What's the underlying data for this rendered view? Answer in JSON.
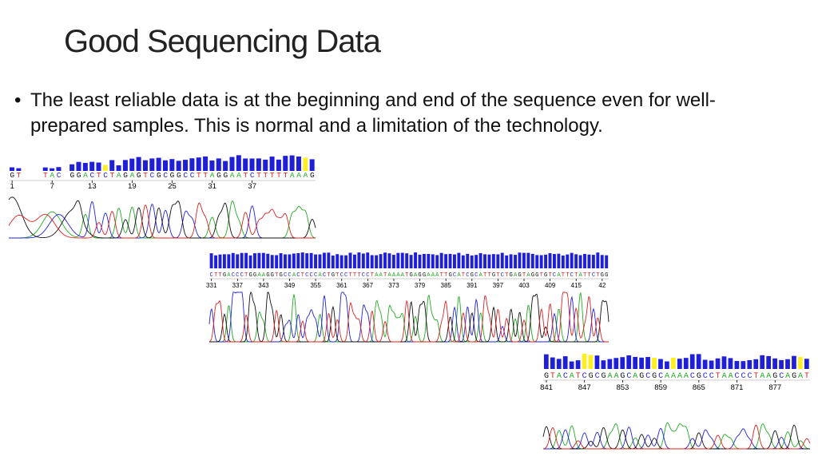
{
  "slide": {
    "title": "Good Sequencing Data",
    "bullet": "The least reliable data is at the beginning and end of the sequence even for well-prepared samples.  This is normal and a limitation of the technology."
  },
  "colors": {
    "A": "#22aa22",
    "C": "#2222dd",
    "G": "#111111",
    "T": "#dd2222",
    "quality_high": "#1f1fd8",
    "quality_low": "#ffee22"
  },
  "traces": [
    {
      "region": "start",
      "bases": "GT   TAC GGACTCTAGAGTCGCGGCCTTAGGAATCTTTTTAAAG",
      "positions": [
        "1",
        "7",
        "13",
        "19",
        "25",
        "31",
        "37"
      ]
    },
    {
      "region": "middle",
      "bases": "CTTGACCCTGGAAGGTGCCACTCCCACTGTCCTTTCCTAATAAAATGAGGAAATTGCATCGCATTGTCTGAGTAGGTGTCATTCTATTCTGG",
      "positions": [
        "331",
        "337",
        "343",
        "349",
        "355",
        "361",
        "367",
        "373",
        "379",
        "385",
        "391",
        "397",
        "403",
        "409",
        "415",
        "42"
      ]
    },
    {
      "region": "end",
      "bases": "GTACATCGCGAAGCAGCGCAAAACGCCTAACCCTAAGCAGAT",
      "positions": [
        "841",
        "847",
        "853",
        "859",
        "865",
        "871",
        "877"
      ]
    }
  ]
}
